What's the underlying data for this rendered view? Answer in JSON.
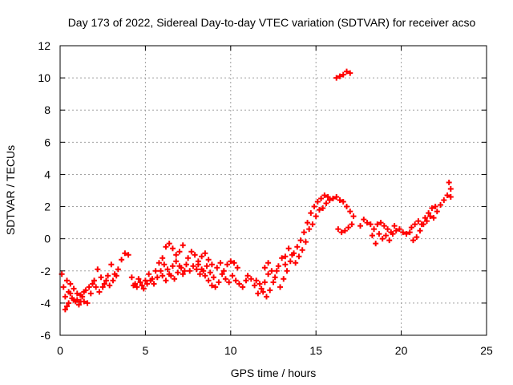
{
  "chart_data": {
    "type": "scatter",
    "title": "Day 173 of 2022, Sidereal Day-to-day VTEC variation (SDTVAR) for receiver acso",
    "xlabel": "GPS time / hours",
    "ylabel": "SDTVAR / TECUs",
    "xlim": [
      0,
      25
    ],
    "ylim": [
      -6,
      12
    ],
    "xticks": [
      0,
      5,
      10,
      15,
      20,
      25
    ],
    "yticks": [
      -6,
      -4,
      -2,
      0,
      2,
      4,
      6,
      8,
      10,
      12
    ],
    "grid": true,
    "marker": "+",
    "color": "#ff0000",
    "series": [
      {
        "name": "SDTVAR",
        "points": [
          [
            0.1,
            -2.2
          ],
          [
            0.2,
            -3.0
          ],
          [
            0.3,
            -3.6
          ],
          [
            0.4,
            -4.2
          ],
          [
            0.5,
            -3.3
          ],
          [
            0.6,
            -2.8
          ],
          [
            0.8,
            -3.1
          ],
          [
            1.0,
            -3.8
          ],
          [
            1.2,
            -3.5
          ],
          [
            1.4,
            -3.9
          ],
          [
            1.6,
            -4.0
          ],
          [
            1.8,
            -3.4
          ],
          [
            2.0,
            -2.6
          ],
          [
            2.2,
            -1.9
          ],
          [
            2.4,
            -2.4
          ],
          [
            2.6,
            -2.8
          ],
          [
            2.8,
            -2.3
          ],
          [
            3.0,
            -1.6
          ],
          [
            3.2,
            -2.2
          ],
          [
            3.4,
            -1.9
          ],
          [
            3.6,
            -1.3
          ],
          [
            3.8,
            -0.9
          ],
          [
            4.0,
            -1.0
          ],
          [
            0.3,
            -4.4
          ],
          [
            0.5,
            -4.0
          ],
          [
            0.7,
            -3.7
          ],
          [
            0.9,
            -3.9
          ],
          [
            1.1,
            -4.1
          ],
          [
            1.3,
            -3.6
          ],
          [
            1.5,
            -3.2
          ],
          [
            1.7,
            -3.0
          ],
          [
            1.9,
            -2.8
          ],
          [
            2.1,
            -3.0
          ],
          [
            2.3,
            -3.3
          ],
          [
            2.5,
            -3.0
          ],
          [
            2.7,
            -2.6
          ],
          [
            2.9,
            -2.9
          ],
          [
            3.1,
            -2.6
          ],
          [
            3.3,
            -2.3
          ],
          [
            0.4,
            -2.6
          ],
          [
            0.6,
            -3.4
          ],
          [
            0.8,
            -3.8
          ],
          [
            1.0,
            -3.4
          ],
          [
            1.2,
            -3.9
          ],
          [
            1.4,
            -3.3
          ],
          [
            4.2,
            -2.4
          ],
          [
            4.4,
            -2.8
          ],
          [
            4.6,
            -2.5
          ],
          [
            4.8,
            -2.9
          ],
          [
            5.0,
            -2.6
          ],
          [
            5.2,
            -2.2
          ],
          [
            5.4,
            -2.5
          ],
          [
            5.6,
            -2.0
          ],
          [
            5.8,
            -1.5
          ],
          [
            6.0,
            -1.2
          ],
          [
            6.2,
            -0.5
          ],
          [
            6.4,
            -0.3
          ],
          [
            6.6,
            -0.6
          ],
          [
            6.8,
            -1.0
          ],
          [
            7.0,
            -0.8
          ],
          [
            7.2,
            -0.4
          ],
          [
            4.3,
            -2.9
          ],
          [
            4.5,
            -3.0
          ],
          [
            4.7,
            -2.7
          ],
          [
            4.9,
            -3.1
          ],
          [
            5.1,
            -2.8
          ],
          [
            5.3,
            -2.6
          ],
          [
            5.5,
            -2.8
          ],
          [
            5.7,
            -2.4
          ],
          [
            5.9,
            -2.0
          ],
          [
            6.1,
            -1.6
          ],
          [
            6.3,
            -1.9
          ],
          [
            6.5,
            -2.3
          ],
          [
            6.7,
            -2.5
          ],
          [
            6.9,
            -2.1
          ],
          [
            7.1,
            -1.8
          ],
          [
            7.3,
            -2.0
          ],
          [
            6.0,
            -2.3
          ],
          [
            6.2,
            -2.6
          ],
          [
            6.4,
            -2.2
          ],
          [
            6.6,
            -1.7
          ],
          [
            6.8,
            -1.4
          ],
          [
            7.0,
            -1.7
          ],
          [
            7.2,
            -2.2
          ],
          [
            7.4,
            -1.6
          ],
          [
            7.5,
            -1.2
          ],
          [
            7.7,
            -0.8
          ],
          [
            7.9,
            -1.0
          ],
          [
            8.1,
            -1.4
          ],
          [
            8.3,
            -1.1
          ],
          [
            8.5,
            -0.9
          ],
          [
            8.7,
            -1.3
          ],
          [
            8.9,
            -1.6
          ],
          [
            7.6,
            -2.0
          ],
          [
            7.8,
            -1.7
          ],
          [
            8.0,
            -1.9
          ],
          [
            8.2,
            -2.2
          ],
          [
            8.4,
            -2.0
          ],
          [
            8.6,
            -1.7
          ],
          [
            8.8,
            -2.1
          ],
          [
            9.0,
            -2.4
          ],
          [
            8.1,
            -1.6
          ],
          [
            8.3,
            -1.9
          ],
          [
            8.5,
            -2.3
          ],
          [
            8.7,
            -2.6
          ],
          [
            8.9,
            -2.9
          ],
          [
            9.1,
            -3.0
          ],
          [
            9.3,
            -2.7
          ],
          [
            9.5,
            -2.2
          ],
          [
            9.2,
            -1.8
          ],
          [
            9.4,
            -1.5
          ],
          [
            9.6,
            -2.0
          ],
          [
            9.8,
            -1.6
          ],
          [
            10.0,
            -1.4
          ],
          [
            10.2,
            -1.5
          ],
          [
            10.4,
            -1.8
          ],
          [
            9.7,
            -2.5
          ],
          [
            9.9,
            -2.7
          ],
          [
            10.1,
            -2.3
          ],
          [
            10.3,
            -2.6
          ],
          [
            10.5,
            -2.8
          ],
          [
            10.7,
            -3.0
          ],
          [
            10.9,
            -2.6
          ],
          [
            11.0,
            -2.3
          ],
          [
            11.2,
            -2.5
          ],
          [
            11.4,
            -2.9
          ],
          [
            11.6,
            -3.4
          ],
          [
            11.8,
            -3.1
          ],
          [
            12.0,
            -2.7
          ],
          [
            12.2,
            -2.2
          ],
          [
            11.5,
            -2.6
          ],
          [
            11.7,
            -2.8
          ],
          [
            11.9,
            -3.3
          ],
          [
            12.1,
            -3.6
          ],
          [
            12.3,
            -3.2
          ],
          [
            12.5,
            -2.7
          ],
          [
            12.7,
            -2.0
          ],
          [
            12.0,
            -1.8
          ],
          [
            12.2,
            -1.5
          ],
          [
            12.4,
            -2.0
          ],
          [
            12.6,
            -2.4
          ],
          [
            12.8,
            -1.7
          ],
          [
            13.0,
            -1.2
          ],
          [
            13.2,
            -1.6
          ],
          [
            12.9,
            -3.0
          ],
          [
            13.1,
            -2.5
          ],
          [
            13.3,
            -2.0
          ],
          [
            13.5,
            -1.4
          ],
          [
            13.7,
            -0.9
          ],
          [
            13.9,
            -0.5
          ],
          [
            14.1,
            -0.1
          ],
          [
            13.2,
            -1.1
          ],
          [
            13.4,
            -0.6
          ],
          [
            13.6,
            -1.0
          ],
          [
            13.8,
            -1.5
          ],
          [
            14.0,
            -1.1
          ],
          [
            14.2,
            -0.7
          ],
          [
            14.4,
            -0.2
          ],
          [
            14.3,
            0.4
          ],
          [
            14.5,
            1.0
          ],
          [
            14.7,
            1.6
          ],
          [
            14.9,
            2.0
          ],
          [
            15.1,
            2.3
          ],
          [
            15.3,
            2.5
          ],
          [
            15.5,
            2.7
          ],
          [
            15.7,
            2.6
          ],
          [
            14.6,
            0.6
          ],
          [
            14.8,
            0.9
          ],
          [
            15.0,
            1.4
          ],
          [
            15.2,
            1.8
          ],
          [
            15.4,
            1.9
          ],
          [
            15.6,
            2.2
          ],
          [
            15.8,
            2.4
          ],
          [
            16.0,
            2.5
          ],
          [
            16.2,
            2.6
          ],
          [
            16.4,
            2.4
          ],
          [
            16.6,
            2.3
          ],
          [
            16.8,
            2.0
          ],
          [
            17.0,
            1.7
          ],
          [
            17.2,
            1.4
          ],
          [
            16.3,
            0.6
          ],
          [
            16.5,
            0.4
          ],
          [
            16.7,
            0.5
          ],
          [
            16.9,
            0.7
          ],
          [
            17.1,
            0.9
          ],
          [
            16.2,
            10.0
          ],
          [
            16.4,
            10.1
          ],
          [
            16.6,
            10.2
          ],
          [
            16.8,
            10.4
          ],
          [
            17.0,
            10.3
          ],
          [
            17.6,
            0.8
          ],
          [
            17.8,
            1.2
          ],
          [
            18.0,
            1.0
          ],
          [
            18.2,
            0.9
          ],
          [
            18.4,
            0.6
          ],
          [
            18.3,
            0.2
          ],
          [
            18.5,
            -0.3
          ],
          [
            18.6,
            0.9
          ],
          [
            18.8,
            1.0
          ],
          [
            19.0,
            0.8
          ],
          [
            19.2,
            0.6
          ],
          [
            19.4,
            0.4
          ],
          [
            19.6,
            0.8
          ],
          [
            18.7,
            0.3
          ],
          [
            18.9,
            0.0
          ],
          [
            19.1,
            0.2
          ],
          [
            19.3,
            -0.1
          ],
          [
            19.5,
            0.3
          ],
          [
            19.7,
            0.5
          ],
          [
            19.9,
            0.6
          ],
          [
            20.1,
            0.4
          ],
          [
            20.3,
            0.3
          ],
          [
            20.5,
            0.4
          ],
          [
            20.7,
            -0.1
          ],
          [
            20.9,
            0.1
          ],
          [
            21.1,
            0.5
          ],
          [
            21.3,
            0.9
          ],
          [
            21.5,
            1.1
          ],
          [
            21.7,
            1.4
          ],
          [
            20.6,
            0.7
          ],
          [
            20.8,
            0.9
          ],
          [
            21.0,
            1.1
          ],
          [
            21.2,
            0.9
          ],
          [
            21.4,
            1.3
          ],
          [
            21.6,
            1.6
          ],
          [
            21.8,
            1.9
          ],
          [
            22.0,
            2.0
          ],
          [
            21.9,
            1.3
          ],
          [
            22.1,
            1.7
          ],
          [
            22.3,
            2.1
          ],
          [
            22.5,
            2.4
          ],
          [
            22.7,
            2.7
          ],
          [
            22.9,
            3.1
          ],
          [
            22.8,
            3.5
          ],
          [
            22.9,
            2.6
          ]
        ]
      }
    ]
  }
}
